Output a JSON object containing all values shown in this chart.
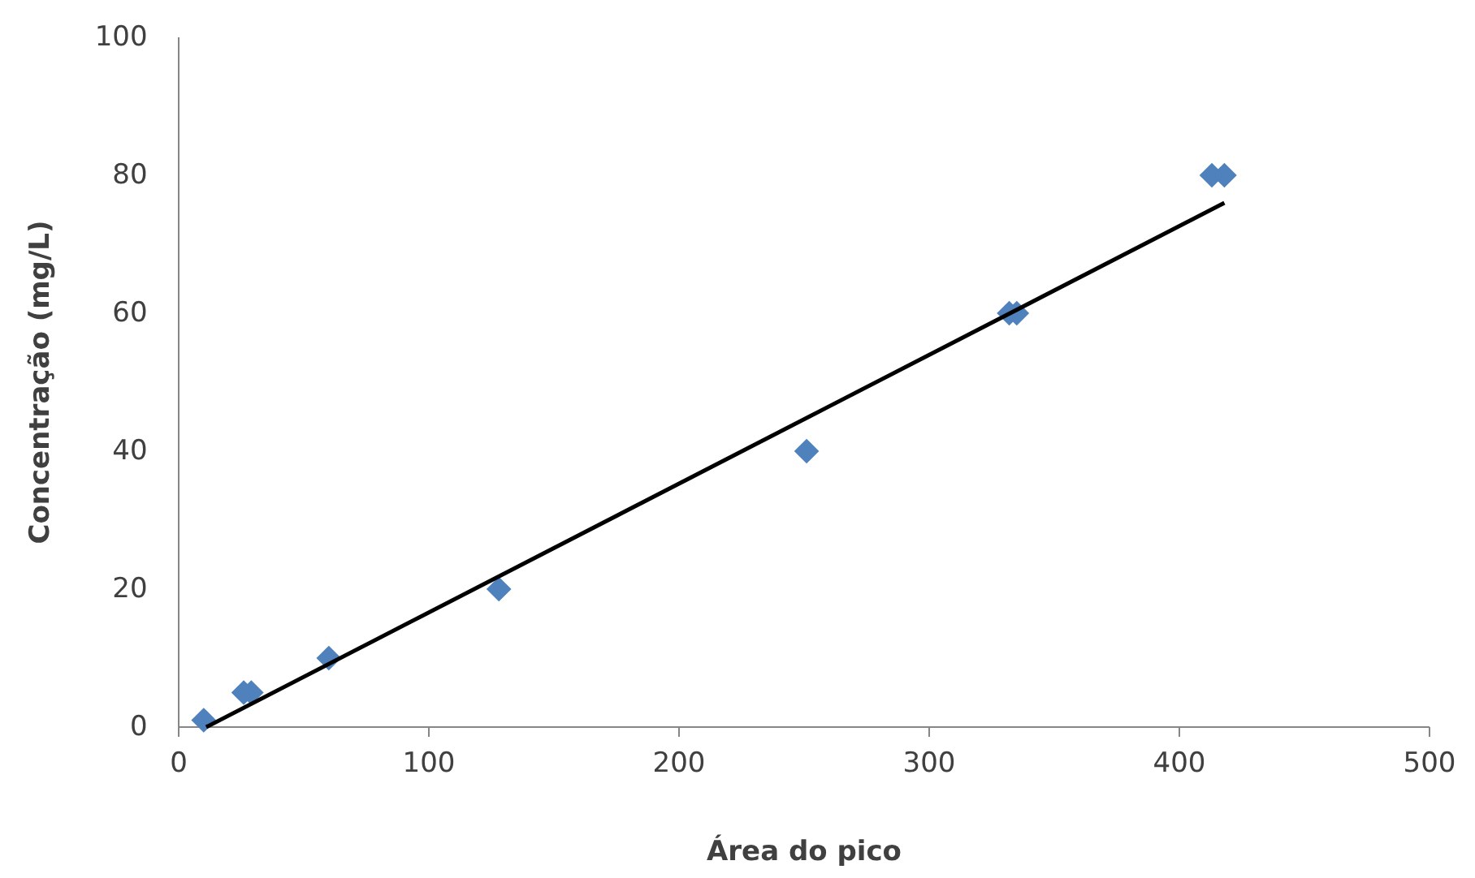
{
  "chart_data": {
    "type": "scatter",
    "xlabel": "Área do pico",
    "ylabel": "Concentração  (mg/L)",
    "xlim": [
      0,
      500
    ],
    "xticks": [
      0,
      100,
      200,
      300,
      400,
      500
    ],
    "ylim": [
      0,
      100
    ],
    "yticks": [
      0,
      20,
      40,
      60,
      80,
      100
    ],
    "grid": false,
    "marker": "diamond",
    "series": [
      {
        "color": "#4f81bd",
        "x": [
          10,
          26,
          29,
          60,
          128,
          251,
          332,
          335,
          413,
          418
        ],
        "values": [
          1,
          5,
          5,
          10,
          20,
          40,
          60,
          60,
          80,
          80
        ]
      },
      {
        "type": "line",
        "color": "#000000",
        "line_style": "solid",
        "marker": "none",
        "x": [
          11,
          418
        ],
        "values": [
          0,
          76
        ]
      }
    ]
  }
}
